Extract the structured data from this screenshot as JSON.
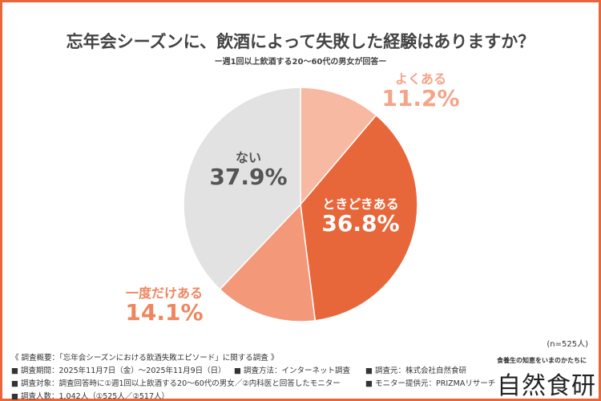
{
  "chart_data": {
    "type": "pie",
    "title": "忘年会シーズンに、飲酒によって失敗した経験はありますか？",
    "subtitle": "ー週1回以上飲酒する20〜60代の男女が回答ー",
    "slices": [
      {
        "label": "よくある",
        "value": 11.2,
        "display": "11.2%",
        "color": "#f8b9a2",
        "text_color": "#f4a488"
      },
      {
        "label": "ときどきある",
        "value": 36.8,
        "display": "36.8%",
        "color": "#e8673a",
        "text_color": "#ffffff"
      },
      {
        "label": "一度だけある",
        "value": 14.1,
        "display": "14.1%",
        "color": "#f4987a",
        "text_color": "#ef8660"
      },
      {
        "label": "ない",
        "value": 37.9,
        "display": "37.9%",
        "color": "#e2e2e2",
        "text_color": "#555555"
      }
    ],
    "start": "top",
    "direction": "clockwise",
    "n_note": "(n=525人)"
  },
  "footer": {
    "overview": "《 調査概要：「忘年会シーズンにおける飲酒失敗エピソード」に関する調査 》",
    "period": "■ 調査期間：2025年11月7日（金）〜2025年11月9日（日）",
    "method": "■ 調査方法：インターネット調査",
    "source": "■ 調査元：株式会社自然食研",
    "target": "■ 調査対象：調査回答時に①週1回以上飲酒する20〜60代の男女／②内科医と回答したモニター",
    "monitor": "■ モニター提供元：PRIZMAリサーチ",
    "count": "■ 調査人数：1,042人（①525人／②517人）"
  },
  "brand": {
    "tagline": "食養生の知恵をいまのかたちに",
    "name": "自然食研"
  },
  "colors": {
    "accent": "#e8673a"
  }
}
